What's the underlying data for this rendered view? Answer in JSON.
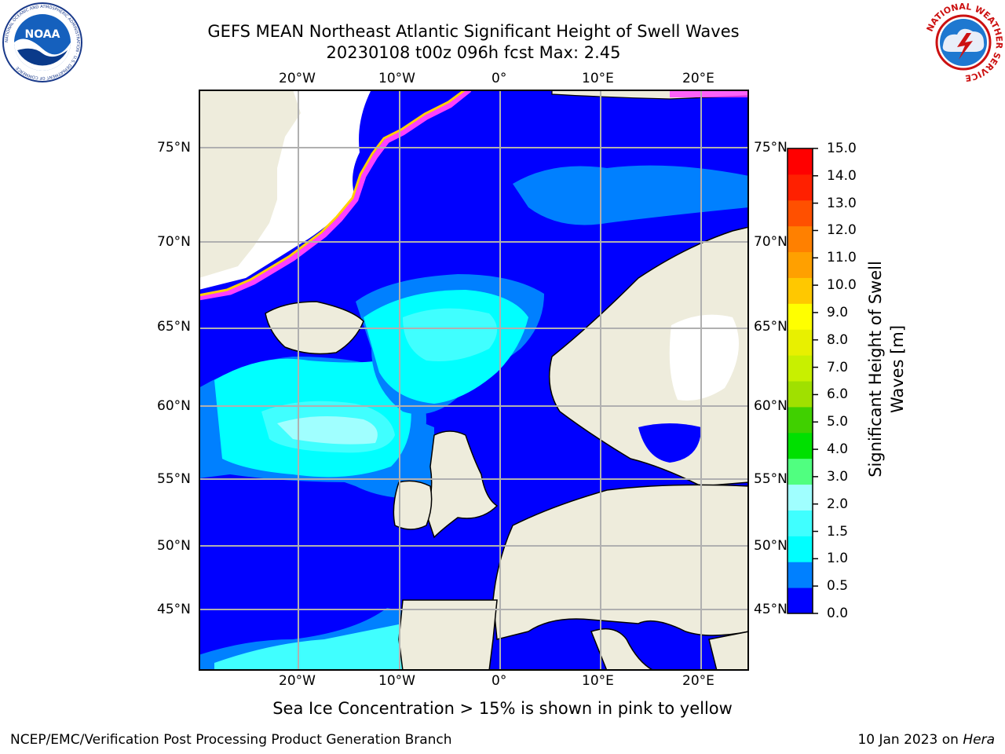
{
  "title": {
    "line1": "GEFS MEAN Northeast Atlantic Significant Height of Swell Waves",
    "line2": "20230108 t00z 096h fcst   Max: 2.45"
  },
  "axes": {
    "lon_labels": [
      "20°W",
      "10°W",
      "0°",
      "10°E",
      "20°E"
    ],
    "lat_labels": [
      "75°N",
      "70°N",
      "65°N",
      "60°N",
      "55°N",
      "50°N",
      "45°N"
    ]
  },
  "colorbar": {
    "label_line1": "Significant Height of Swell",
    "label_line2": "Waves [m]",
    "ticks": [
      "15.0",
      "14.0",
      "13.0",
      "12.0",
      "11.0",
      "10.0",
      "9.0",
      "8.0",
      "7.0",
      "6.0",
      "5.0",
      "4.0",
      "3.0",
      "2.0",
      "1.5",
      "1.0",
      "0.5",
      "0.0"
    ],
    "colors": [
      "#0000ff",
      "#0080ff",
      "#00ffff",
      "#40ffff",
      "#a0ffff",
      "#50ff80",
      "#00e000",
      "#40d000",
      "#a0e000",
      "#c8f000",
      "#e8f000",
      "#ffff00",
      "#ffc800",
      "#ffa000",
      "#ff8000",
      "#ff5000",
      "#ff2000",
      "#ff0000"
    ]
  },
  "logos": {
    "noaa_text": "NOAA",
    "noaa_ring": "NATIONAL OCEANIC AND ATMOSPHERIC ADMINISTRATION · U.S. DEPARTMENT OF COMMERCE",
    "nws_ring": "NATIONAL WEATHER SERVICE"
  },
  "map_colors": {
    "land": "#eeecdc",
    "ocean_low": "#0000ff",
    "ocean_mid": "#0080ff",
    "ocean_cyan": "#00ffff",
    "ocean_light": "#40ffff",
    "ocean_pale": "#a0ffff",
    "ice_pink": "#ff40ff",
    "ice_yellow": "#ffd000"
  },
  "note": "Sea Ice Concentration > 15% is shown in pink to yellow",
  "footer": {
    "left": "NCEP/EMC/Verification Post Processing Product Generation Branch",
    "right_prefix": "10 Jan 2023 on ",
    "right_host": "Hera"
  }
}
